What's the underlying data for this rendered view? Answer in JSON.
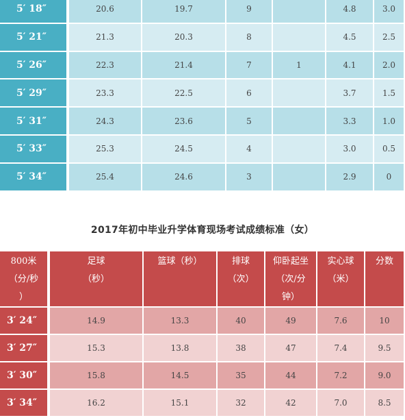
{
  "male_table": {
    "rows": [
      {
        "run_800": "5′ 18″",
        "football": "20.6",
        "basketball": "19.7",
        "volleyball": "9",
        "situps": "",
        "medicine_ball": "4.8",
        "score": "3.0"
      },
      {
        "run_800": "5′ 21″",
        "football": "21.3",
        "basketball": "20.3",
        "volleyball": "8",
        "situps": "",
        "medicine_ball": "4.5",
        "score": "2.5"
      },
      {
        "run_800": "5′ 26″",
        "football": "22.3",
        "basketball": "21.4",
        "volleyball": "7",
        "situps": "1",
        "medicine_ball": "4.1",
        "score": "2.0"
      },
      {
        "run_800": "5′ 29″",
        "football": "23.3",
        "basketball": "22.5",
        "volleyball": "6",
        "situps": "",
        "medicine_ball": "3.7",
        "score": "1.5"
      },
      {
        "run_800": "5′ 31″",
        "football": "24.3",
        "basketball": "23.6",
        "volleyball": "5",
        "situps": "",
        "medicine_ball": "3.3",
        "score": "1.0"
      },
      {
        "run_800": "5′ 33″",
        "football": "25.3",
        "basketball": "24.5",
        "volleyball": "4",
        "situps": "",
        "medicine_ball": "3.0",
        "score": "0.5"
      },
      {
        "run_800": "5′ 34″",
        "football": "25.4",
        "basketball": "24.6",
        "volleyball": "3",
        "situps": "",
        "medicine_ball": "2.9",
        "score": "0"
      }
    ]
  },
  "female_title": "2017年初中毕业升学体育现场考试成绩标准（女）",
  "female_table": {
    "headers": {
      "run_800": [
        "800米",
        "（分/秒",
        "）"
      ],
      "football": [
        "足球",
        "（秒）"
      ],
      "basketball": [
        "篮球（秒）"
      ],
      "volleyball": [
        "排球",
        "（次）"
      ],
      "situps": [
        "仰卧起坐",
        "（次/分",
        "钟）"
      ],
      "medicine_ball": [
        "实心球",
        "（米）"
      ],
      "score": [
        "分数"
      ]
    },
    "rows": [
      {
        "run_800": "3′ 24″",
        "football": "14.9",
        "basketball": "13.3",
        "volleyball": "40",
        "situps": "49",
        "medicine_ball": "7.6",
        "score": "10"
      },
      {
        "run_800": "3′ 27″",
        "football": "15.3",
        "basketball": "13.8",
        "volleyball": "38",
        "situps": "47",
        "medicine_ball": "7.4",
        "score": "9.5"
      },
      {
        "run_800": "3′ 30″",
        "football": "15.8",
        "basketball": "14.5",
        "volleyball": "35",
        "situps": "44",
        "medicine_ball": "7.2",
        "score": "9.0"
      },
      {
        "run_800": "3′ 34″",
        "football": "16.2",
        "basketball": "15.1",
        "volleyball": "32",
        "situps": "42",
        "medicine_ball": "7.0",
        "score": "8.5"
      }
    ]
  },
  "colors": {
    "male_header": "#49afc4",
    "male_row_dark": "#b7dfe8",
    "male_row_light": "#d6ecf2",
    "female_header": "#c44b4b",
    "female_row_dark": "#e2a6a6",
    "female_row_light": "#f1d2d2"
  }
}
